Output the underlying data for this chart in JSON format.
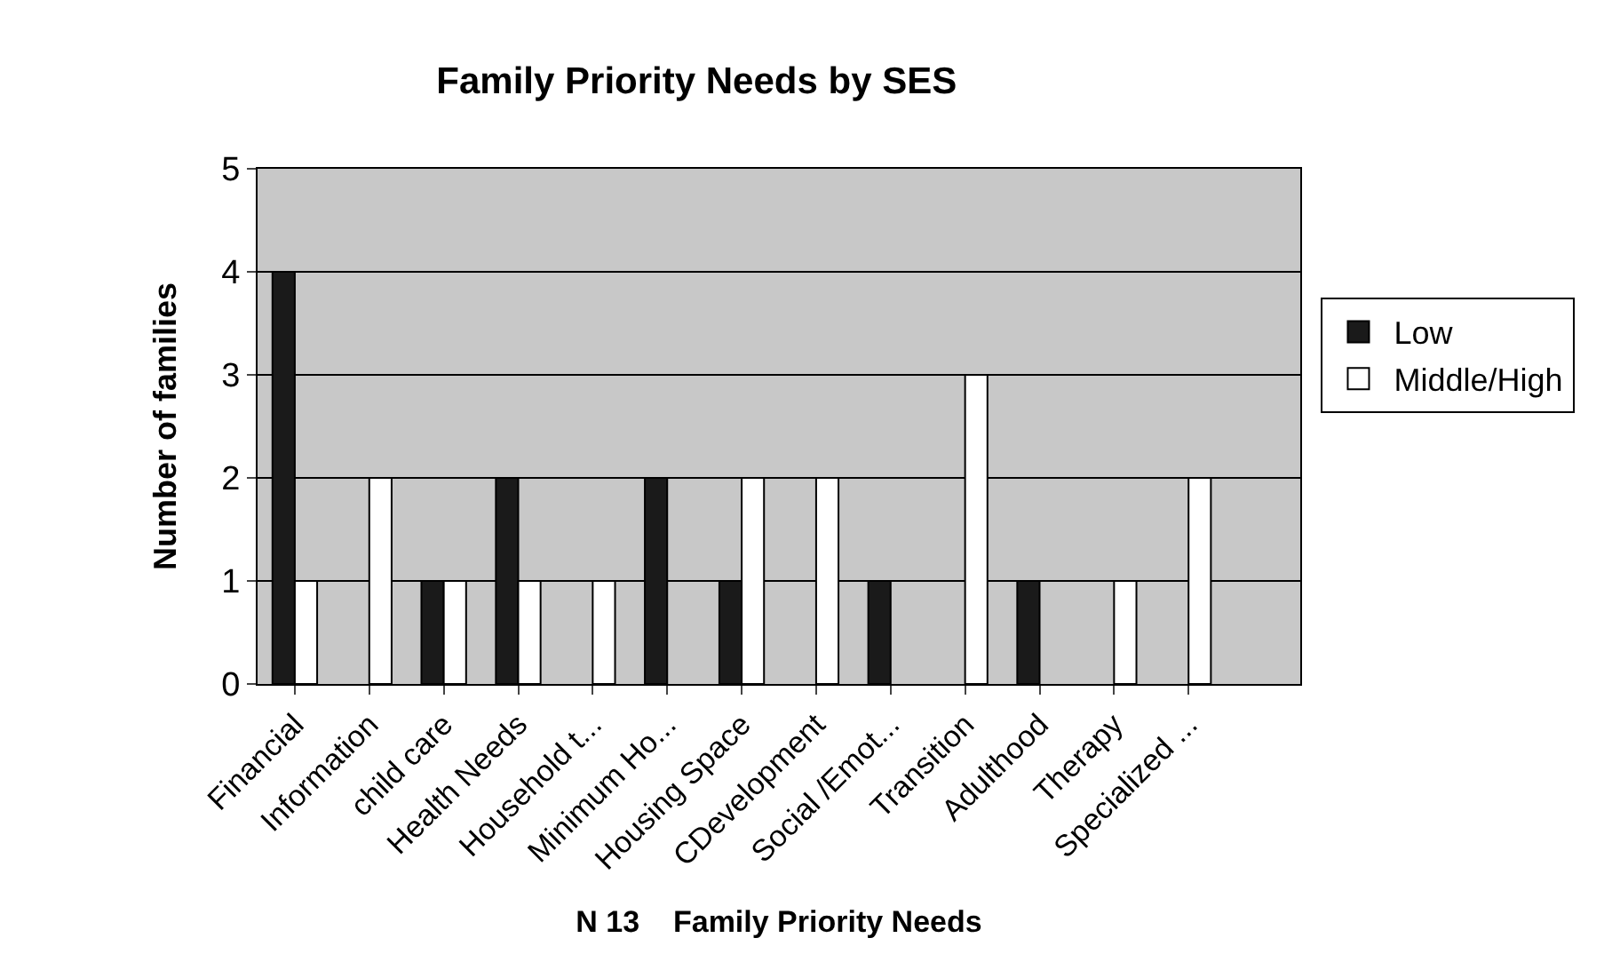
{
  "chart_data": {
    "type": "bar",
    "title": "Family Priority Needs by SES",
    "xlabel": "N 13    Family Priority Needs",
    "ylabel": "Number of families",
    "categories": [
      "Financial",
      "Information",
      "child care",
      "Health Needs",
      "Household t...",
      "Minimum Ho...",
      "Housing Space",
      "CDevelopment",
      "Social /Emot...",
      "Transition",
      "Adulthood",
      "Therapy",
      "Specialized ...",
      null
    ],
    "series": [
      {
        "name": "Low",
        "color": "#1a1a1a",
        "values": [
          4,
          0,
          1,
          2,
          0,
          2,
          1,
          0,
          1,
          0,
          1,
          0,
          0,
          null
        ]
      },
      {
        "name": "Middle/High",
        "color": "#ffffff",
        "values": [
          1,
          2,
          1,
          1,
          1,
          0,
          2,
          2,
          0,
          3,
          0,
          1,
          2,
          null
        ]
      }
    ],
    "ylim": [
      0,
      5
    ],
    "yticks": [
      0,
      1,
      2,
      3,
      4,
      5
    ],
    "grid": "y",
    "legend": "right"
  }
}
